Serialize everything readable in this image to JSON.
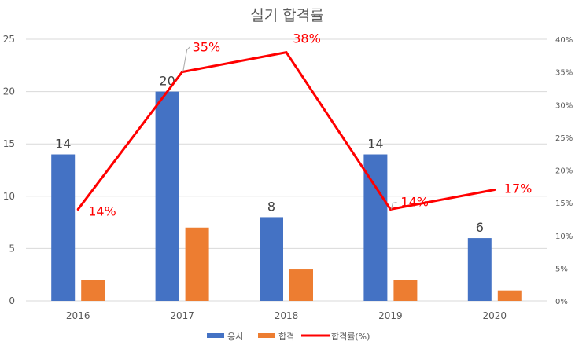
{
  "chart_data": {
    "type": "bar",
    "title": "실기 합격률",
    "categories": [
      "2016",
      "2017",
      "2018",
      "2019",
      "2020"
    ],
    "series": [
      {
        "name": "응시",
        "type": "bar",
        "axis": "left",
        "values": [
          14,
          20,
          8,
          14,
          6
        ],
        "color": "#4472C4",
        "data_labels": [
          "14",
          "20",
          "8",
          "14",
          "6"
        ]
      },
      {
        "name": "합격",
        "type": "bar",
        "axis": "left",
        "values": [
          2,
          7,
          3,
          2,
          1
        ],
        "color": "#ED7D31"
      },
      {
        "name": "합격률(%)",
        "type": "line",
        "axis": "right",
        "values": [
          14,
          35,
          38,
          14,
          17
        ],
        "color": "#FF0000",
        "data_labels": [
          "14%",
          "35%",
          "38%",
          "14%",
          "17%"
        ]
      }
    ],
    "y_left": {
      "min": 0,
      "max": 25,
      "ticks": [
        "0",
        "5",
        "10",
        "15",
        "20",
        "25"
      ]
    },
    "y_right": {
      "min": 0,
      "max": 40,
      "ticks": [
        "0%",
        "5%",
        "10%",
        "15%",
        "20%",
        "25%",
        "30%",
        "35%",
        "40%"
      ]
    },
    "grid": true,
    "legend_position": "bottom",
    "colors": {
      "grid": "#D9D9D9",
      "axis_text": "#595959",
      "title_text": "#595959",
      "label_text": "#404040"
    }
  }
}
